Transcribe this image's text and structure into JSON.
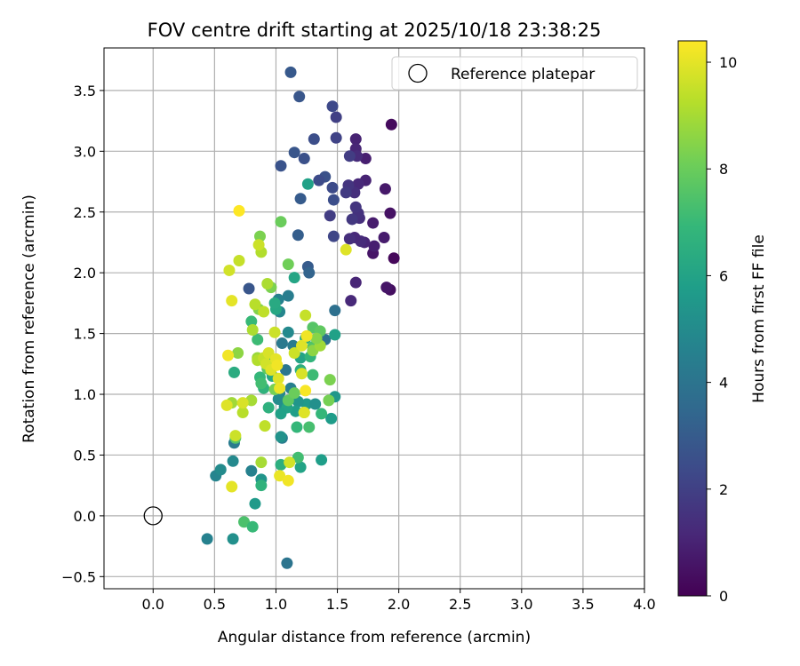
{
  "chart_data": {
    "type": "scatter",
    "title": "FOV centre drift starting at 2025/10/18 23:38:25",
    "xlabel": "Angular distance from reference (arcmin)",
    "ylabel": "Rotation from reference (arcmin)",
    "xlim": [
      -0.4,
      4.0
    ],
    "ylim": [
      -0.6,
      3.85
    ],
    "xticks": [
      0.0,
      0.5,
      1.0,
      1.5,
      2.0,
      2.5,
      3.0,
      3.5,
      4.0
    ],
    "xtick_labels": [
      "0.0",
      "0.5",
      "1.0",
      "1.5",
      "2.0",
      "2.5",
      "3.0",
      "3.5",
      "4.0"
    ],
    "yticks": [
      -0.5,
      0.0,
      0.5,
      1.0,
      1.5,
      2.0,
      2.5,
      3.0,
      3.5
    ],
    "ytick_labels": [
      "−0.5",
      "0.0",
      "0.5",
      "1.0",
      "1.5",
      "2.0",
      "2.5",
      "3.0",
      "3.5"
    ],
    "grid": true,
    "legend": {
      "location": "top-right",
      "entries": [
        "Reference platepar"
      ]
    },
    "reference_point": {
      "x": 0.0,
      "y": 0.0,
      "label": "Reference platepar"
    },
    "colorbar": {
      "label": "Hours from first FF file",
      "min": 0.0,
      "max": 10.4,
      "ticks": [
        0,
        2,
        4,
        6,
        8,
        10
      ],
      "tick_labels": [
        "0",
        "2",
        "4",
        "6",
        "8",
        "10"
      ],
      "colormap": "viridis",
      "colors": [
        "#440154",
        "#482878",
        "#3e4989",
        "#31688e",
        "#26828e",
        "#1f9e89",
        "#35b779",
        "#6ece58",
        "#b5de2b",
        "#fde725"
      ]
    },
    "points": [
      {
        "x": 1.94,
        "y": 3.22,
        "h": 0.3
      },
      {
        "x": 1.96,
        "y": 2.12,
        "h": 0.2
      },
      {
        "x": 1.93,
        "y": 1.86,
        "h": 0.4
      },
      {
        "x": 1.9,
        "y": 1.88,
        "h": 0.6
      },
      {
        "x": 1.93,
        "y": 2.49,
        "h": 0.5
      },
      {
        "x": 1.89,
        "y": 2.69,
        "h": 0.7
      },
      {
        "x": 1.88,
        "y": 2.29,
        "h": 0.8
      },
      {
        "x": 1.79,
        "y": 2.16,
        "h": 0.6
      },
      {
        "x": 1.8,
        "y": 2.22,
        "h": 0.9
      },
      {
        "x": 1.79,
        "y": 2.41,
        "h": 0.8
      },
      {
        "x": 1.73,
        "y": 2.76,
        "h": 1.0
      },
      {
        "x": 1.73,
        "y": 2.94,
        "h": 0.9
      },
      {
        "x": 1.72,
        "y": 2.25,
        "h": 1.1
      },
      {
        "x": 1.69,
        "y": 2.26,
        "h": 1.3
      },
      {
        "x": 1.67,
        "y": 2.73,
        "h": 1.2
      },
      {
        "x": 1.68,
        "y": 2.45,
        "h": 1.4
      },
      {
        "x": 1.67,
        "y": 2.49,
        "h": 1.5
      },
      {
        "x": 1.65,
        "y": 3.1,
        "h": 1.0
      },
      {
        "x": 1.65,
        "y": 3.02,
        "h": 1.1
      },
      {
        "x": 1.66,
        "y": 2.96,
        "h": 1.3
      },
      {
        "x": 1.64,
        "y": 2.66,
        "h": 1.4
      },
      {
        "x": 1.65,
        "y": 2.54,
        "h": 1.6
      },
      {
        "x": 1.64,
        "y": 2.29,
        "h": 1.2
      },
      {
        "x": 1.65,
        "y": 1.92,
        "h": 1.1
      },
      {
        "x": 1.61,
        "y": 1.77,
        "h": 1.2
      },
      {
        "x": 1.6,
        "y": 2.28,
        "h": 1.4
      },
      {
        "x": 1.62,
        "y": 2.44,
        "h": 1.7
      },
      {
        "x": 1.59,
        "y": 2.72,
        "h": 1.6
      },
      {
        "x": 1.6,
        "y": 2.96,
        "h": 1.9
      },
      {
        "x": 1.57,
        "y": 2.66,
        "h": 1.8
      },
      {
        "x": 1.49,
        "y": 3.28,
        "h": 2.0
      },
      {
        "x": 1.49,
        "y": 3.11,
        "h": 2.1
      },
      {
        "x": 1.46,
        "y": 3.37,
        "h": 2.3
      },
      {
        "x": 1.47,
        "y": 2.3,
        "h": 2.2
      },
      {
        "x": 1.44,
        "y": 2.47,
        "h": 1.9
      },
      {
        "x": 1.46,
        "y": 2.7,
        "h": 2.4
      },
      {
        "x": 1.47,
        "y": 2.6,
        "h": 2.5
      },
      {
        "x": 1.4,
        "y": 2.79,
        "h": 2.6
      },
      {
        "x": 1.35,
        "y": 2.76,
        "h": 2.4
      },
      {
        "x": 1.31,
        "y": 3.1,
        "h": 2.5
      },
      {
        "x": 1.23,
        "y": 2.94,
        "h": 2.6
      },
      {
        "x": 1.19,
        "y": 3.45,
        "h": 2.8
      },
      {
        "x": 1.12,
        "y": 3.65,
        "h": 2.9
      },
      {
        "x": 1.15,
        "y": 2.99,
        "h": 2.8
      },
      {
        "x": 1.04,
        "y": 2.88,
        "h": 2.7
      },
      {
        "x": 1.2,
        "y": 2.61,
        "h": 3.0
      },
      {
        "x": 1.18,
        "y": 2.31,
        "h": 3.1
      },
      {
        "x": 1.26,
        "y": 2.05,
        "h": 3.0
      },
      {
        "x": 1.27,
        "y": 2.0,
        "h": 3.3
      },
      {
        "x": 1.26,
        "y": 2.73,
        "h": 5.9
      },
      {
        "x": 0.78,
        "y": 1.87,
        "h": 2.8
      },
      {
        "x": 1.48,
        "y": 1.69,
        "h": 3.8
      },
      {
        "x": 1.4,
        "y": 1.45,
        "h": 3.9
      },
      {
        "x": 1.1,
        "y": 1.81,
        "h": 4.4
      },
      {
        "x": 1.02,
        "y": 1.78,
        "h": 4.6
      },
      {
        "x": 1.03,
        "y": 1.68,
        "h": 4.8
      },
      {
        "x": 1.05,
        "y": 1.42,
        "h": 4.2
      },
      {
        "x": 1.1,
        "y": 1.51,
        "h": 4.9
      },
      {
        "x": 1.14,
        "y": 1.4,
        "h": 4.3
      },
      {
        "x": 1.08,
        "y": 1.2,
        "h": 4.1
      },
      {
        "x": 1.12,
        "y": 1.05,
        "h": 4.5
      },
      {
        "x": 1.03,
        "y": 1.01,
        "h": 4.8
      },
      {
        "x": 1.02,
        "y": 0.96,
        "h": 5.0
      },
      {
        "x": 1.07,
        "y": 0.9,
        "h": 5.1
      },
      {
        "x": 1.05,
        "y": 0.64,
        "h": 4.3
      },
      {
        "x": 1.04,
        "y": 0.65,
        "h": 5.3
      },
      {
        "x": 1.09,
        "y": -0.39,
        "h": 4.0
      },
      {
        "x": 0.44,
        "y": -0.19,
        "h": 4.6
      },
      {
        "x": 0.65,
        "y": -0.19,
        "h": 5.2
      },
      {
        "x": 0.65,
        "y": 0.45,
        "h": 4.9
      },
      {
        "x": 0.51,
        "y": 0.33,
        "h": 4.7
      },
      {
        "x": 0.55,
        "y": 0.38,
        "h": 5.0
      },
      {
        "x": 0.66,
        "y": 0.6,
        "h": 4.3
      },
      {
        "x": 0.8,
        "y": 0.37,
        "h": 4.6
      },
      {
        "x": 0.83,
        "y": 0.1,
        "h": 5.6
      },
      {
        "x": 0.88,
        "y": 0.3,
        "h": 5.4
      },
      {
        "x": 1.2,
        "y": 0.4,
        "h": 6.0
      },
      {
        "x": 1.37,
        "y": 0.46,
        "h": 5.8
      },
      {
        "x": 1.45,
        "y": 0.8,
        "h": 5.7
      },
      {
        "x": 1.48,
        "y": 0.98,
        "h": 5.5
      },
      {
        "x": 1.48,
        "y": 1.49,
        "h": 5.9
      },
      {
        "x": 1.25,
        "y": 0.92,
        "h": 5.6
      },
      {
        "x": 1.32,
        "y": 0.92,
        "h": 5.2
      },
      {
        "x": 1.18,
        "y": 0.94,
        "h": 5.4
      },
      {
        "x": 1.16,
        "y": 0.86,
        "h": 5.8
      },
      {
        "x": 1.09,
        "y": 0.89,
        "h": 6.0
      },
      {
        "x": 1.04,
        "y": 0.84,
        "h": 5.9
      },
      {
        "x": 1.0,
        "y": 1.7,
        "h": 6.2
      },
      {
        "x": 0.99,
        "y": 1.75,
        "h": 6.3
      },
      {
        "x": 1.15,
        "y": 1.96,
        "h": 6.1
      },
      {
        "x": 1.2,
        "y": 1.3,
        "h": 6.0
      },
      {
        "x": 1.24,
        "y": 1.46,
        "h": 6.2
      },
      {
        "x": 0.97,
        "y": 1.15,
        "h": 6.2
      },
      {
        "x": 0.66,
        "y": 1.18,
        "h": 6.4
      },
      {
        "x": 0.94,
        "y": 0.89,
        "h": 6.6
      },
      {
        "x": 0.9,
        "y": 1.05,
        "h": 6.7
      },
      {
        "x": 0.95,
        "y": 1.26,
        "h": 6.8
      },
      {
        "x": 0.87,
        "y": 1.14,
        "h": 6.9
      },
      {
        "x": 0.8,
        "y": 1.6,
        "h": 7.0
      },
      {
        "x": 0.85,
        "y": 1.45,
        "h": 7.1
      },
      {
        "x": 0.88,
        "y": 1.09,
        "h": 7.2
      },
      {
        "x": 1.2,
        "y": 1.2,
        "h": 6.5
      },
      {
        "x": 1.28,
        "y": 1.31,
        "h": 6.8
      },
      {
        "x": 1.3,
        "y": 1.16,
        "h": 7.1
      },
      {
        "x": 1.37,
        "y": 0.84,
        "h": 6.9
      },
      {
        "x": 1.27,
        "y": 0.73,
        "h": 7.3
      },
      {
        "x": 1.17,
        "y": 0.73,
        "h": 6.9
      },
      {
        "x": 1.18,
        "y": 0.48,
        "h": 7.2
      },
      {
        "x": 1.04,
        "y": 0.42,
        "h": 6.5
      },
      {
        "x": 0.74,
        "y": -0.05,
        "h": 7.4
      },
      {
        "x": 0.81,
        "y": -0.09,
        "h": 7.0
      },
      {
        "x": 0.88,
        "y": 0.25,
        "h": 6.7
      },
      {
        "x": 0.67,
        "y": 0.64,
        "h": 7.6
      },
      {
        "x": 1.1,
        "y": 0.95,
        "h": 7.8
      },
      {
        "x": 1.15,
        "y": 1.01,
        "h": 8.0
      },
      {
        "x": 0.99,
        "y": 1.04,
        "h": 8.2
      },
      {
        "x": 0.93,
        "y": 1.21,
        "h": 7.7
      },
      {
        "x": 1.3,
        "y": 1.39,
        "h": 7.5
      },
      {
        "x": 1.3,
        "y": 1.55,
        "h": 7.6
      },
      {
        "x": 1.36,
        "y": 1.52,
        "h": 7.8
      },
      {
        "x": 1.1,
        "y": 2.07,
        "h": 8.1
      },
      {
        "x": 0.87,
        "y": 2.3,
        "h": 8.3
      },
      {
        "x": 0.86,
        "y": 1.7,
        "h": 8.4
      },
      {
        "x": 0.96,
        "y": 1.88,
        "h": 8.3
      },
      {
        "x": 1.04,
        "y": 2.42,
        "h": 8.0
      },
      {
        "x": 1.3,
        "y": 1.36,
        "h": 8.6
      },
      {
        "x": 1.36,
        "y": 1.4,
        "h": 8.9
      },
      {
        "x": 1.33,
        "y": 1.46,
        "h": 8.5
      },
      {
        "x": 1.44,
        "y": 1.12,
        "h": 8.3
      },
      {
        "x": 1.43,
        "y": 0.95,
        "h": 8.2
      },
      {
        "x": 1.23,
        "y": 0.85,
        "h": 8.7
      },
      {
        "x": 0.85,
        "y": 1.3,
        "h": 8.8
      },
      {
        "x": 0.69,
        "y": 1.34,
        "h": 8.6
      },
      {
        "x": 0.64,
        "y": 0.93,
        "h": 8.9
      },
      {
        "x": 0.8,
        "y": 0.95,
        "h": 9.0
      },
      {
        "x": 0.81,
        "y": 1.53,
        "h": 9.1
      },
      {
        "x": 0.85,
        "y": 1.28,
        "h": 9.2
      },
      {
        "x": 0.83,
        "y": 1.74,
        "h": 9.3
      },
      {
        "x": 0.9,
        "y": 1.68,
        "h": 9.4
      },
      {
        "x": 0.93,
        "y": 1.91,
        "h": 9.1
      },
      {
        "x": 0.88,
        "y": 2.17,
        "h": 9.2
      },
      {
        "x": 0.86,
        "y": 2.23,
        "h": 9.6
      },
      {
        "x": 0.7,
        "y": 2.1,
        "h": 9.5
      },
      {
        "x": 0.62,
        "y": 2.02,
        "h": 9.7
      },
      {
        "x": 0.9,
        "y": 1.3,
        "h": 9.5
      },
      {
        "x": 0.92,
        "y": 1.25,
        "h": 9.7
      },
      {
        "x": 0.94,
        "y": 1.34,
        "h": 9.8
      },
      {
        "x": 0.96,
        "y": 1.2,
        "h": 9.9
      },
      {
        "x": 1.0,
        "y": 1.29,
        "h": 10.0
      },
      {
        "x": 1.01,
        "y": 1.24,
        "h": 10.2
      },
      {
        "x": 1.02,
        "y": 1.13,
        "h": 9.9
      },
      {
        "x": 0.99,
        "y": 1.51,
        "h": 9.6
      },
      {
        "x": 1.03,
        "y": 1.05,
        "h": 10.1
      },
      {
        "x": 0.91,
        "y": 0.74,
        "h": 9.4
      },
      {
        "x": 0.88,
        "y": 0.44,
        "h": 9.0
      },
      {
        "x": 0.73,
        "y": 0.85,
        "h": 9.3
      },
      {
        "x": 0.73,
        "y": 0.93,
        "h": 9.8
      },
      {
        "x": 0.6,
        "y": 0.91,
        "h": 9.9
      },
      {
        "x": 0.67,
        "y": 0.66,
        "h": 9.6
      },
      {
        "x": 0.64,
        "y": 0.24,
        "h": 10.0
      },
      {
        "x": 1.03,
        "y": 0.33,
        "h": 10.1
      },
      {
        "x": 1.1,
        "y": 0.29,
        "h": 10.2
      },
      {
        "x": 1.11,
        "y": 0.44,
        "h": 9.7
      },
      {
        "x": 1.23,
        "y": 0.85,
        "h": 9.9
      },
      {
        "x": 1.24,
        "y": 1.03,
        "h": 10.3
      },
      {
        "x": 1.21,
        "y": 1.17,
        "h": 9.8
      },
      {
        "x": 1.15,
        "y": 1.34,
        "h": 9.6
      },
      {
        "x": 1.21,
        "y": 1.4,
        "h": 9.9
      },
      {
        "x": 1.24,
        "y": 1.65,
        "h": 9.5
      },
      {
        "x": 1.25,
        "y": 1.48,
        "h": 10.2
      },
      {
        "x": 1.57,
        "y": 2.19,
        "h": 9.9
      },
      {
        "x": 0.64,
        "y": 1.77,
        "h": 10.0
      },
      {
        "x": 0.61,
        "y": 1.32,
        "h": 10.2
      },
      {
        "x": 0.7,
        "y": 2.51,
        "h": 10.4
      }
    ]
  }
}
